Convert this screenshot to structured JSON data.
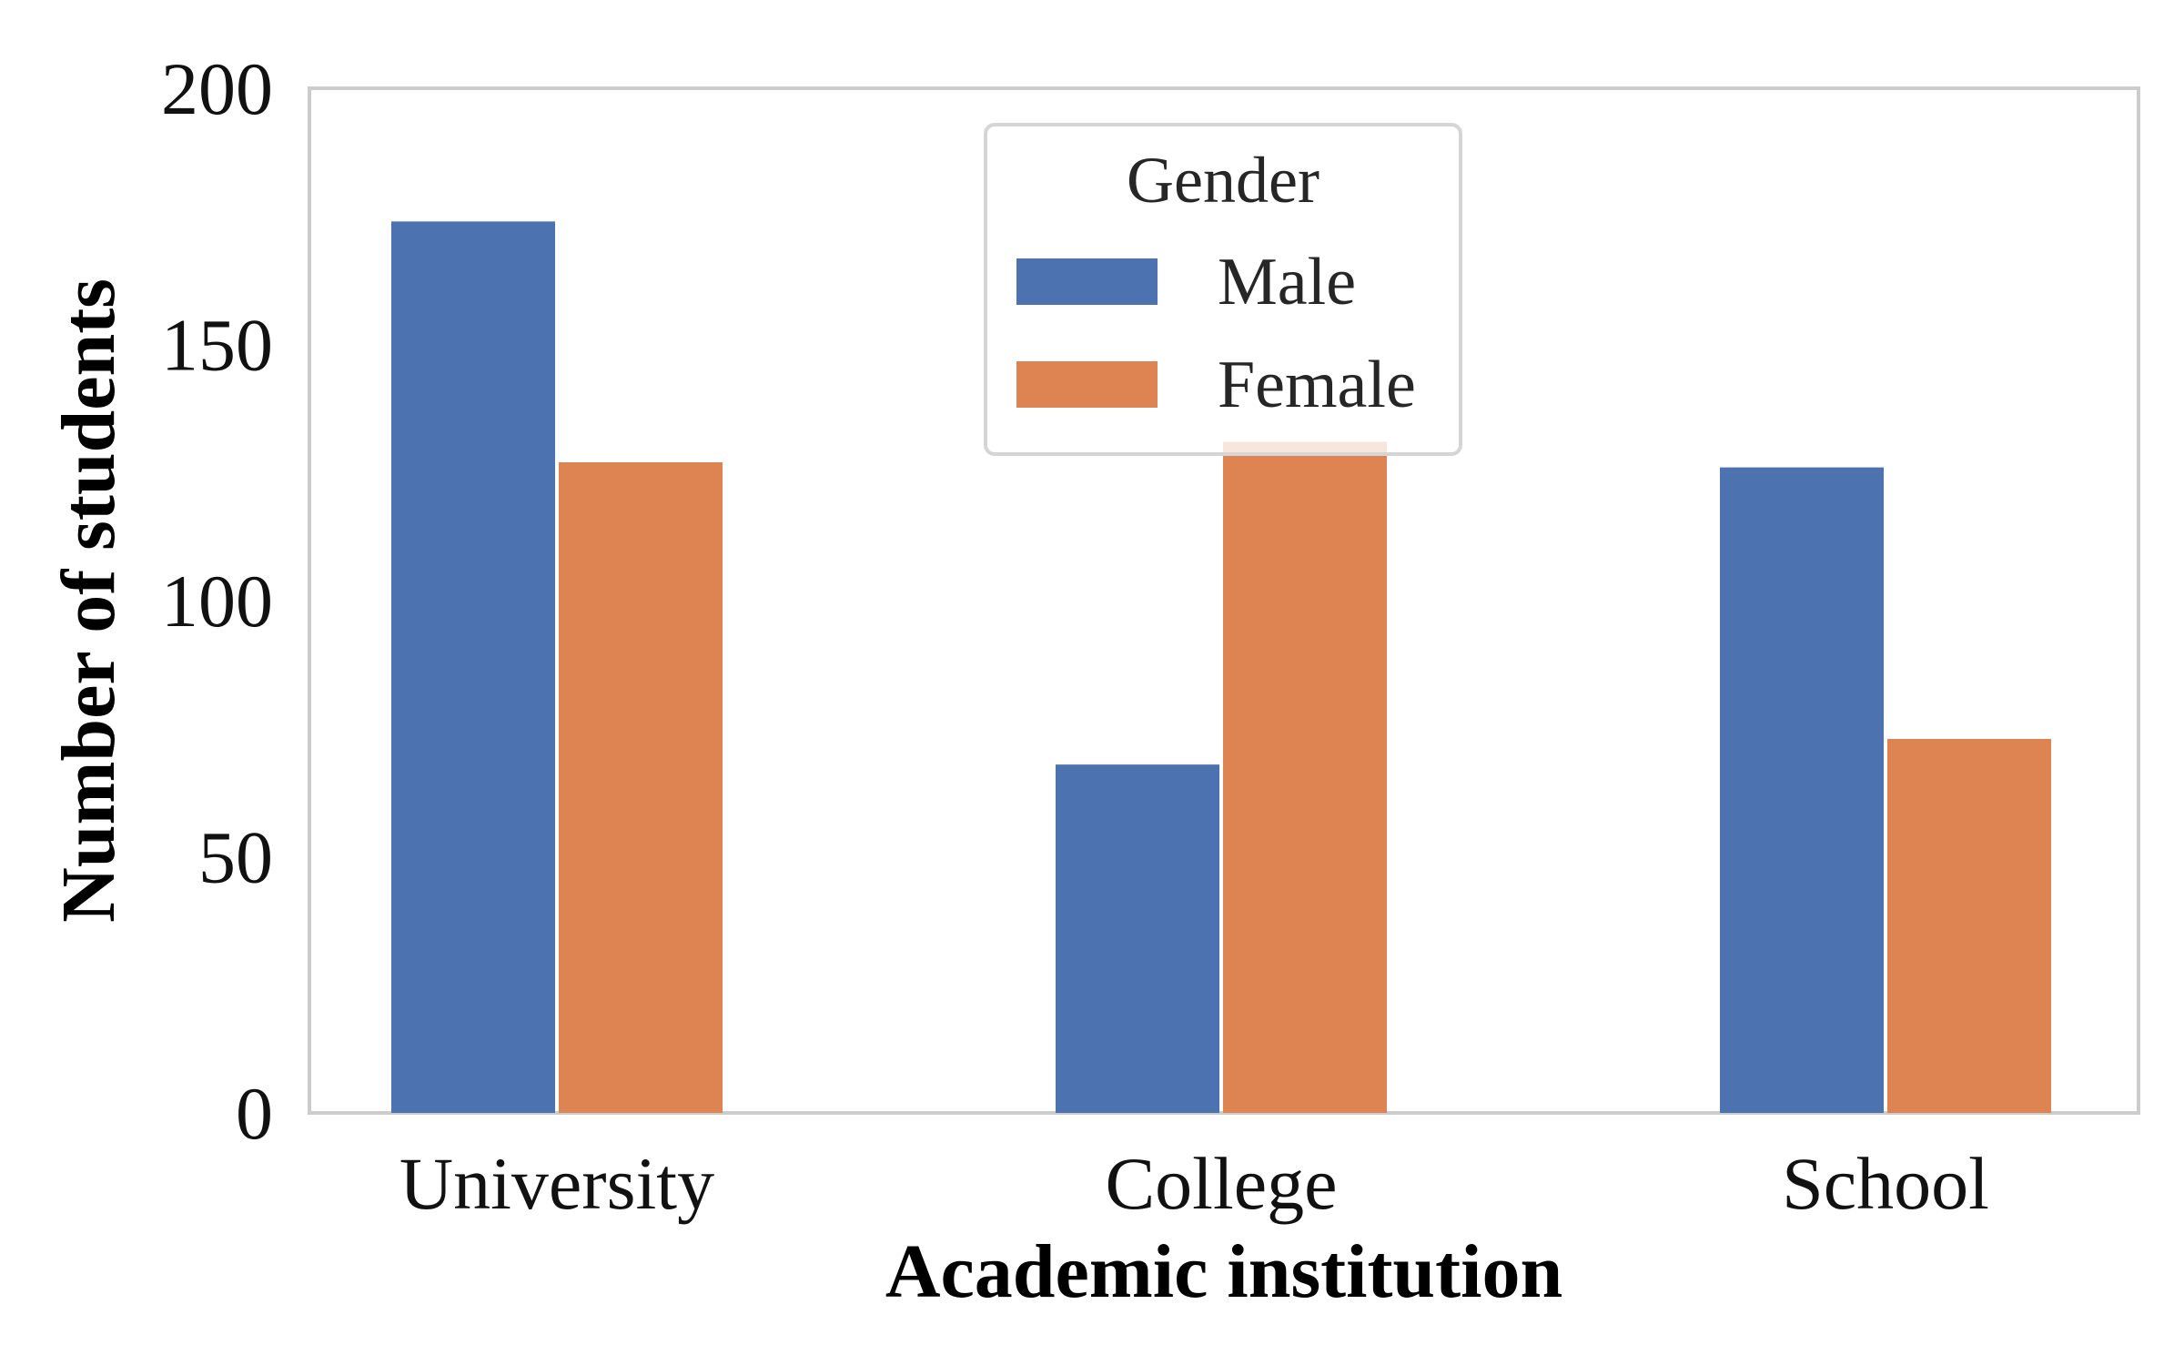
{
  "chart_data": {
    "type": "bar",
    "categories": [
      "University",
      "College",
      "School"
    ],
    "series": [
      {
        "name": "Male",
        "color": "#4C72B0",
        "values": [
          174,
          68,
          126
        ]
      },
      {
        "name": "Female",
        "color": "#DD8452",
        "values": [
          127,
          131,
          73
        ]
      }
    ],
    "xlabel": "Academic institution",
    "ylabel": "Number of students",
    "ylim": [
      0,
      200
    ],
    "yticks": [
      0,
      50,
      100,
      150,
      200
    ],
    "legend": {
      "title": "Gender",
      "position": "upper-center"
    },
    "grid": false
  }
}
